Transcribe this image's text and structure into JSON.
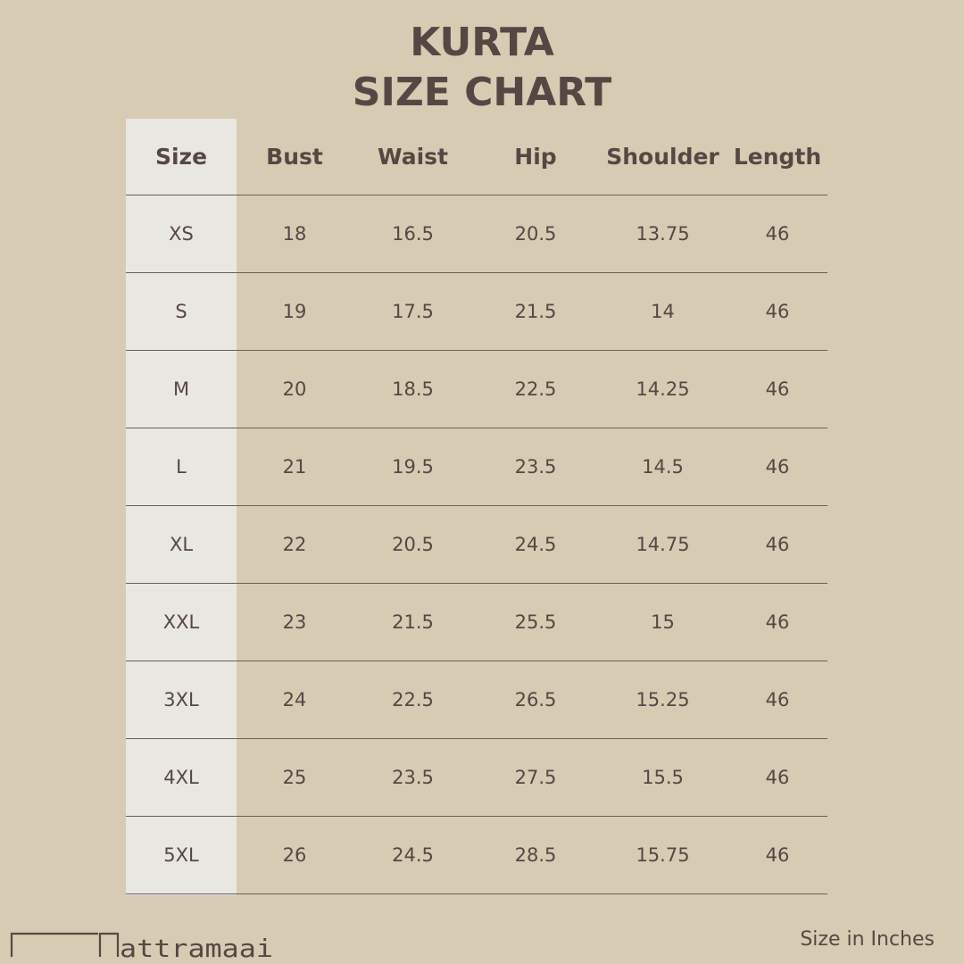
{
  "title_line1": "KURTA",
  "title_line2": "SIZE CHART",
  "table": {
    "headers": [
      "Size",
      "Bust",
      "Waist",
      "Hip",
      "Shoulder",
      "Length"
    ],
    "rows": [
      [
        "XS",
        "18",
        "16.5",
        "20.5",
        "13.75",
        "46"
      ],
      [
        "S",
        "19",
        "17.5",
        "21.5",
        "14",
        "46"
      ],
      [
        "M",
        "20",
        "18.5",
        "22.5",
        "14.25",
        "46"
      ],
      [
        "L",
        "21",
        "19.5",
        "23.5",
        "14.5",
        "46"
      ],
      [
        "XL",
        "22",
        "20.5",
        "24.5",
        "14.75",
        "46"
      ],
      [
        "XXL",
        "23",
        "21.5",
        "25.5",
        "15",
        "46"
      ],
      [
        "3XL",
        "24",
        "22.5",
        "26.5",
        "15.25",
        "46"
      ],
      [
        "4XL",
        "25",
        "23.5",
        "27.5",
        "15.5",
        "46"
      ],
      [
        "5XL",
        "26",
        "24.5",
        "28.5",
        "15.75",
        "46"
      ]
    ]
  },
  "unit_note": "Size in Inches",
  "logo_text": "Mattramaai",
  "colors": {
    "background": "#d7cbb3",
    "text": "#574744",
    "size_column": "#e9e7e2"
  }
}
